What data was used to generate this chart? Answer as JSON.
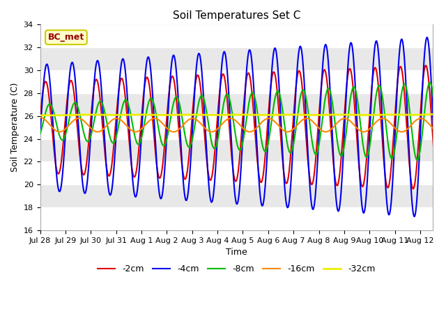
{
  "title": "Soil Temperatures Set C",
  "xlabel": "Time",
  "ylabel": "Soil Temperature (C)",
  "ylim": [
    16,
    34
  ],
  "background_color": "#f0f0f0",
  "plot_bg_color": "#f0f0f0",
  "fig_bg_color": "#ffffff",
  "label_box_text": "BC_met",
  "label_box_facecolor": "#ffffcc",
  "label_box_edgecolor": "#cccc00",
  "label_box_textcolor": "#990000",
  "legend_labels": [
    "-2cm",
    "-4cm",
    "-8cm",
    "-16cm",
    "-32cm"
  ],
  "line_colors": [
    "#dd0000",
    "#0000ee",
    "#00bb00",
    "#ff8800",
    "#eeee00"
  ],
  "line_widths": [
    1.5,
    1.5,
    1.5,
    1.5,
    2.0
  ],
  "tick_labels": [
    "Jul 28",
    "Jul 29",
    "Jul 30",
    "Jul 31",
    "Aug 1",
    "Aug 2",
    "Aug 3",
    "Aug 4",
    "Aug 5",
    "Aug 6",
    "Aug 7",
    "Aug 8",
    "Aug 9",
    "Aug 10",
    "Aug 11",
    "Aug 12"
  ],
  "num_days": 16,
  "points_per_day": 48
}
